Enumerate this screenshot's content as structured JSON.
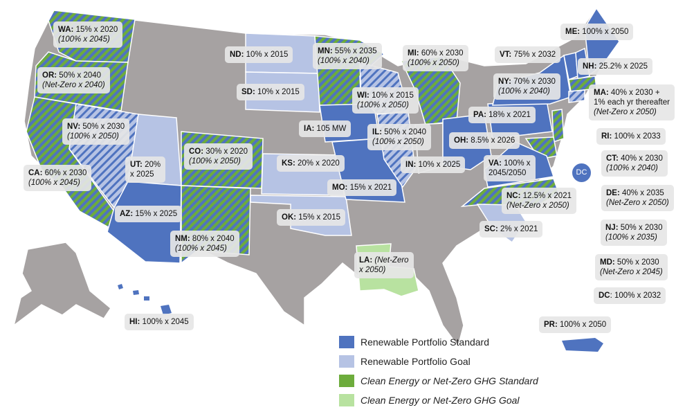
{
  "colors": {
    "background_map": "#a6a2a2",
    "rps_standard": "#4f73bf",
    "rps_goal": "#b6c3e4",
    "clean_standard": "#6dac3c",
    "clean_goal": "#b8e2a0",
    "border": "#ffffff"
  },
  "legend": [
    {
      "label": "Renewable Portfolio Standard",
      "color": "#4f73bf",
      "italic": false
    },
    {
      "label": "Renewable Portfolio Goal",
      "color": "#b6c3e4",
      "italic": false
    },
    {
      "label": "Clean Energy or Net-Zero GHG Standard",
      "color": "#6dac3c",
      "italic": true
    },
    {
      "label": "Clean Energy or Net-Zero GHG Goal",
      "color": "#b8e2a0",
      "italic": true
    }
  ],
  "dc_marker": "DC",
  "states": {
    "WA": {
      "code": "WA:",
      "value": "15% x 2020",
      "goal": "(100% x 2045)"
    },
    "OR": {
      "code": "OR:",
      "value": "50% x 2040",
      "goal": "(Net-Zero x 2040)"
    },
    "CA": {
      "code": "CA:",
      "value": "60% x 2030",
      "goal": "(100% x 2045)"
    },
    "NV": {
      "code": "NV:",
      "value": "50% x 2030",
      "goal": "(100% x 2050)"
    },
    "UT": {
      "code": "UT:",
      "value": "20%",
      "line2": "x 2025"
    },
    "AZ": {
      "code": "AZ:",
      "value": "15% x 2025"
    },
    "CO": {
      "code": "CO:",
      "value": "30% x 2020",
      "goal": "(100% x 2050)"
    },
    "NM": {
      "code": "NM:",
      "value": "80% x 2040",
      "goal": "(100% x 2045)"
    },
    "ND": {
      "code": "ND:",
      "value": "10% x 2015"
    },
    "SD": {
      "code": "SD:",
      "value": "10% x 2015"
    },
    "KS": {
      "code": "KS:",
      "value": "20% x 2020"
    },
    "OK": {
      "code": "OK:",
      "value": "15% x 2015"
    },
    "MN": {
      "code": "MN:",
      "value": "55% x 2035",
      "goal": "(100% x 2040)"
    },
    "IA": {
      "code": "IA:",
      "value": "105 MW"
    },
    "MO": {
      "code": "MO:",
      "value": "15% x 2021"
    },
    "LA": {
      "code": "LA:",
      "value": "(Net-Zero",
      "line2": "x 2050)"
    },
    "WI": {
      "code": "WI:",
      "value": "10% x 2015",
      "goal": "(100% x 2050)"
    },
    "IL": {
      "code": "IL:",
      "value": "50% x 2040",
      "goal": "(100% x 2050)"
    },
    "MI": {
      "code": "MI:",
      "value": "60% x 2030",
      "goal": "(100% x 2050)"
    },
    "IN": {
      "code": "IN:",
      "value": "10% x 2025"
    },
    "OH": {
      "code": "OH:",
      "value": "8.5% x 2026"
    },
    "PA": {
      "code": "PA:",
      "value": "18% x 2021"
    },
    "NY": {
      "code": "NY:",
      "value": "70% x 2030",
      "goal": "(100% x 2040)"
    },
    "VT": {
      "code": "VT:",
      "value": "75% x 2032"
    },
    "ME": {
      "code": "ME:",
      "value": "100% x 2050"
    },
    "NH": {
      "code": "NH:",
      "value": "25.2% x 2025"
    },
    "MA": {
      "code": "MA:",
      "value": "40% x 2030 +",
      "line2": "1% each yr thereafter",
      "goal": "(Net-Zero x 2050)"
    },
    "RI": {
      "code": "RI:",
      "value": "100% x 2033"
    },
    "CT": {
      "code": "CT:",
      "value": "40% x 2030",
      "goal": "(100% x 2040)"
    },
    "DE": {
      "code": "DE:",
      "value": "40% x 2035",
      "goal": "(Net-Zero x 2050)"
    },
    "NJ": {
      "code": "NJ:",
      "value": "50% x 2030",
      "goal": "(100% x 2035)"
    },
    "MD": {
      "code": "MD:",
      "value": "50% x 2030",
      "goal": "(Net-Zero x 2045)"
    },
    "DC": {
      "code": "DC",
      "value": ": 100% x 2032"
    },
    "VA": {
      "code": "VA:",
      "value": "100% x",
      "line2": "2045/2050"
    },
    "NC": {
      "code": "NC:",
      "value": "12.5% x 2021",
      "goal": "(Net-Zero x 2050)"
    },
    "SC": {
      "code": "SC:",
      "value": "2% x 2021"
    },
    "HI": {
      "code": "HI:",
      "value": "100% x 2045"
    },
    "PR": {
      "code": "PR:",
      "value": "100% x 2050"
    }
  }
}
